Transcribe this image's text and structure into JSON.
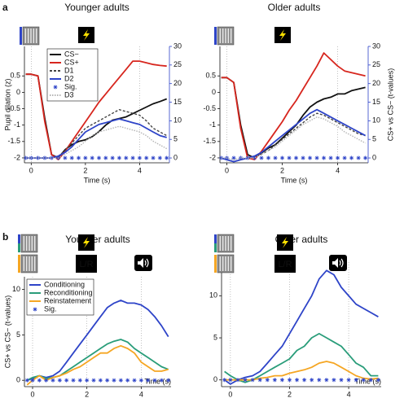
{
  "panel_labels": [
    "a",
    "b"
  ],
  "chart_data": [
    {
      "type": "line",
      "title": "Younger adults",
      "xlabel": "Time (s)",
      "ylabel": "Pupil dilation (z)",
      "x": [
        -0.2,
        0,
        0.25,
        0.5,
        0.75,
        1,
        1.25,
        1.5,
        1.75,
        2,
        2.25,
        2.5,
        2.75,
        3,
        3.25,
        3.5,
        3.75,
        4,
        4.25,
        4.5,
        4.75,
        5
      ],
      "xlim": [
        -0.25,
        5.1
      ],
      "xticks": [
        0,
        2,
        4
      ],
      "vlines": [
        0,
        4
      ],
      "ylim": [
        -2.15,
        1.4
      ],
      "yticks": [
        -2,
        -1.5,
        -1,
        -0.5,
        0,
        0.5
      ],
      "y2lim": [
        -1.3,
        30
      ],
      "y2ticks": [
        0,
        5,
        10,
        15,
        20,
        25,
        30
      ],
      "legend": true,
      "series": [
        {
          "name": "CS−",
          "color": "#111111",
          "style": "solid",
          "values": [
            0.55,
            0.55,
            0.5,
            -0.8,
            -1.9,
            -2.0,
            -1.75,
            -1.6,
            -1.5,
            -1.45,
            -1.35,
            -1.2,
            -1.0,
            -0.85,
            -0.8,
            -0.75,
            -0.65,
            -0.55,
            -0.45,
            -0.35,
            -0.28,
            -0.2
          ]
        },
        {
          "name": "CS+",
          "color": "#d7261e",
          "style": "solid",
          "values": [
            0.55,
            0.55,
            0.5,
            -0.9,
            -1.9,
            -2.05,
            -1.8,
            -1.5,
            -1.2,
            -0.9,
            -0.6,
            -0.3,
            -0.05,
            0.2,
            0.45,
            0.7,
            0.95,
            0.95,
            0.9,
            0.85,
            0.82,
            0.8
          ]
        },
        {
          "name": "D1",
          "color": "#444444",
          "style": "dashed",
          "axis": "y2",
          "values": [
            0,
            0,
            0,
            0,
            0,
            0.5,
            2,
            4,
            6,
            8,
            9,
            10,
            11,
            12,
            13,
            12.5,
            12,
            11.5,
            10,
            8,
            7,
            6
          ]
        },
        {
          "name": "D2",
          "color": "#2e44c8",
          "style": "solid",
          "axis": "y2",
          "values": [
            0,
            0,
            0,
            0,
            0,
            0.5,
            1.5,
            3,
            5,
            7,
            8,
            9,
            9.5,
            10,
            10.5,
            10,
            9.5,
            9,
            8,
            7,
            6,
            5.5
          ]
        },
        {
          "name": "Sig.",
          "color": "#2e44c8",
          "style": "stars",
          "axis": "y2",
          "values": [
            0,
            0,
            0,
            0,
            0,
            0,
            0,
            0,
            0,
            0,
            0,
            0,
            0,
            0,
            0,
            0,
            0,
            0,
            0,
            0,
            0,
            0
          ]
        },
        {
          "name": "D3",
          "color": "#b5b5b5",
          "style": "dotted",
          "axis": "y2",
          "values": [
            0,
            0,
            0,
            0,
            0,
            0,
            1,
            2,
            3,
            4.5,
            6,
            7,
            7.5,
            8,
            8.5,
            8,
            7.5,
            7,
            6,
            4.5,
            3.5,
            2.5
          ]
        }
      ]
    },
    {
      "type": "line",
      "title": "Older adults",
      "xlabel": "Time (s)",
      "y2label": "CS+ vs CS− (t-values)",
      "x": [
        -0.2,
        0,
        0.25,
        0.5,
        0.75,
        1,
        1.25,
        1.5,
        1.75,
        2,
        2.25,
        2.5,
        2.75,
        3,
        3.25,
        3.5,
        3.75,
        4,
        4.25,
        4.5,
        4.75,
        5
      ],
      "xlim": [
        -0.25,
        5.1
      ],
      "xticks": [
        0,
        2,
        4
      ],
      "vlines": [
        0,
        4
      ],
      "ylim": [
        -2.15,
        1.4
      ],
      "yticks": [
        -2,
        -1.5,
        -1,
        -0.5,
        0,
        0.5
      ],
      "y2lim": [
        -1.3,
        30
      ],
      "y2ticks": [
        0,
        5,
        10,
        15,
        20,
        25,
        30
      ],
      "legend": false,
      "series": [
        {
          "color": "#111111",
          "style": "solid",
          "values": [
            0.45,
            0.45,
            0.3,
            -1.0,
            -1.9,
            -2.0,
            -1.85,
            -1.7,
            -1.6,
            -1.4,
            -1.2,
            -1.0,
            -0.7,
            -0.45,
            -0.3,
            -0.2,
            -0.15,
            -0.05,
            -0.05,
            0.05,
            0.1,
            0.15
          ]
        },
        {
          "color": "#d7261e",
          "style": "solid",
          "values": [
            0.45,
            0.45,
            0.3,
            -1.1,
            -2.0,
            -2.05,
            -1.8,
            -1.5,
            -1.2,
            -0.9,
            -0.55,
            -0.25,
            0.1,
            0.45,
            0.8,
            1.2,
            1.0,
            0.8,
            0.65,
            0.6,
            0.55,
            0.5
          ]
        },
        {
          "color": "#444444",
          "style": "dashed",
          "axis": "y2",
          "values": [
            0,
            -0.5,
            -1,
            -0.5,
            0,
            0.3,
            1,
            2,
            3.5,
            5,
            6.5,
            8,
            9.5,
            11,
            12,
            11.5,
            10.5,
            9.5,
            8.5,
            7.5,
            6.5,
            6
          ]
        },
        {
          "color": "#2e44c8",
          "style": "solid",
          "axis": "y2",
          "values": [
            0,
            -0.5,
            -1,
            -0.5,
            0,
            0.5,
            1.5,
            3,
            4.5,
            6,
            7.5,
            9,
            10.5,
            12,
            13,
            12,
            11,
            10,
            9,
            8,
            7,
            6
          ]
        },
        {
          "color": "#2e44c8",
          "style": "stars",
          "axis": "y2",
          "values": [
            0,
            0,
            0,
            0,
            0,
            0,
            0,
            0,
            0,
            0,
            0,
            0,
            0,
            0,
            0,
            0,
            0,
            0,
            0,
            0,
            0,
            0
          ]
        },
        {
          "color": "#b5b5b5",
          "style": "dotted",
          "axis": "y2",
          "values": [
            0,
            0,
            -0.5,
            0,
            0,
            0,
            1,
            2,
            3,
            4.5,
            6,
            7.5,
            9,
            10,
            11,
            10.5,
            9.5,
            8.5,
            7,
            6,
            5,
            4
          ]
        }
      ]
    },
    {
      "type": "line",
      "title": "Younger adults",
      "xlabel": "Time (s)",
      "ylabel": "CS+ vs CS− (t-values)",
      "annotations": [
        "L/R"
      ],
      "x": [
        -0.2,
        0,
        0.25,
        0.5,
        0.75,
        1,
        1.25,
        1.5,
        1.75,
        2,
        2.25,
        2.5,
        2.75,
        3,
        3.25,
        3.5,
        3.75,
        4,
        4.25,
        4.5,
        4.75,
        5
      ],
      "xlim": [
        -0.3,
        5.1
      ],
      "xticks": [
        0,
        2,
        4
      ],
      "vlines": [
        0,
        2,
        4
      ],
      "ylim": [
        -0.7,
        11.4
      ],
      "yticks": [
        0,
        5,
        10
      ],
      "legend": true,
      "series": [
        {
          "name": "Conditioning",
          "color": "#2e44c8",
          "style": "solid",
          "values": [
            0,
            0.2,
            0.5,
            0.3,
            0.5,
            1,
            2,
            3,
            4,
            5,
            6,
            7,
            8,
            8.5,
            8.8,
            8.5,
            8.5,
            8.3,
            7.8,
            7,
            6,
            4.8
          ]
        },
        {
          "name": "Reconditioning",
          "color": "#2a9d7a",
          "style": "solid",
          "values": [
            0,
            0.3,
            0.5,
            0.2,
            0.3,
            0.5,
            1,
            1.5,
            2,
            2.5,
            3,
            3.5,
            4,
            4.3,
            4.5,
            4.2,
            3.5,
            3,
            2.5,
            2,
            1.5,
            1.2
          ]
        },
        {
          "name": "Reinstatement",
          "color": "#f5a623",
          "style": "solid",
          "values": [
            -0.5,
            0,
            0.5,
            0,
            0.3,
            0.5,
            0.8,
            1.2,
            1.5,
            2,
            2.5,
            3,
            3,
            3.5,
            3.8,
            3.5,
            3,
            2,
            1.5,
            1,
            1,
            1.2
          ]
        },
        {
          "name": "Sig.",
          "color": "#2e44c8",
          "style": "stars",
          "values": [
            0,
            0,
            0,
            0,
            0,
            0,
            0,
            0,
            0,
            0,
            0,
            0,
            0,
            0,
            0,
            0,
            0,
            0,
            0,
            0,
            0,
            0
          ]
        }
      ]
    },
    {
      "type": "line",
      "title": "Older adults",
      "xlabel": "Time (s)",
      "annotations": [
        "L/R"
      ],
      "x": [
        -0.2,
        0,
        0.25,
        0.5,
        0.75,
        1,
        1.25,
        1.5,
        1.75,
        2,
        2.25,
        2.5,
        2.75,
        3,
        3.25,
        3.5,
        3.75,
        4,
        4.25,
        4.5,
        4.75,
        5
      ],
      "xlim": [
        -0.3,
        5.1
      ],
      "xticks": [
        0,
        2,
        4
      ],
      "vlines": [
        0,
        2,
        4
      ],
      "ylim": [
        -0.8,
        14.0
      ],
      "yticks": [
        0,
        5,
        10
      ],
      "legend": false,
      "series": [
        {
          "color": "#2e44c8",
          "style": "solid",
          "values": [
            0,
            -0.5,
            0,
            0.3,
            0.5,
            1,
            2,
            3,
            4,
            5.5,
            7,
            8.5,
            10,
            12,
            13,
            12.5,
            11,
            10,
            9,
            8.5,
            8,
            7.5
          ]
        },
        {
          "color": "#2a9d7a",
          "style": "solid",
          "values": [
            1,
            0.5,
            0,
            -0.3,
            0,
            0.5,
            1,
            1.5,
            2,
            2.5,
            3.5,
            4,
            5,
            5.5,
            5,
            4.5,
            4,
            3,
            2,
            1.5,
            0.5,
            0.5
          ]
        },
        {
          "color": "#f5a623",
          "style": "solid",
          "values": [
            0,
            0,
            0,
            0,
            0,
            0.2,
            0.3,
            0.5,
            0.5,
            0.8,
            1,
            1.2,
            1.5,
            2,
            2.2,
            2,
            1.5,
            1,
            0.5,
            0.2,
            0.1,
            0.2
          ]
        },
        {
          "color": "#2e44c8",
          "style": "stars",
          "values": [
            0,
            0,
            0,
            0,
            0,
            0,
            0,
            0,
            0,
            0,
            0,
            0,
            0,
            0,
            0,
            0,
            0,
            0,
            0,
            0,
            0,
            0
          ]
        }
      ]
    }
  ]
}
